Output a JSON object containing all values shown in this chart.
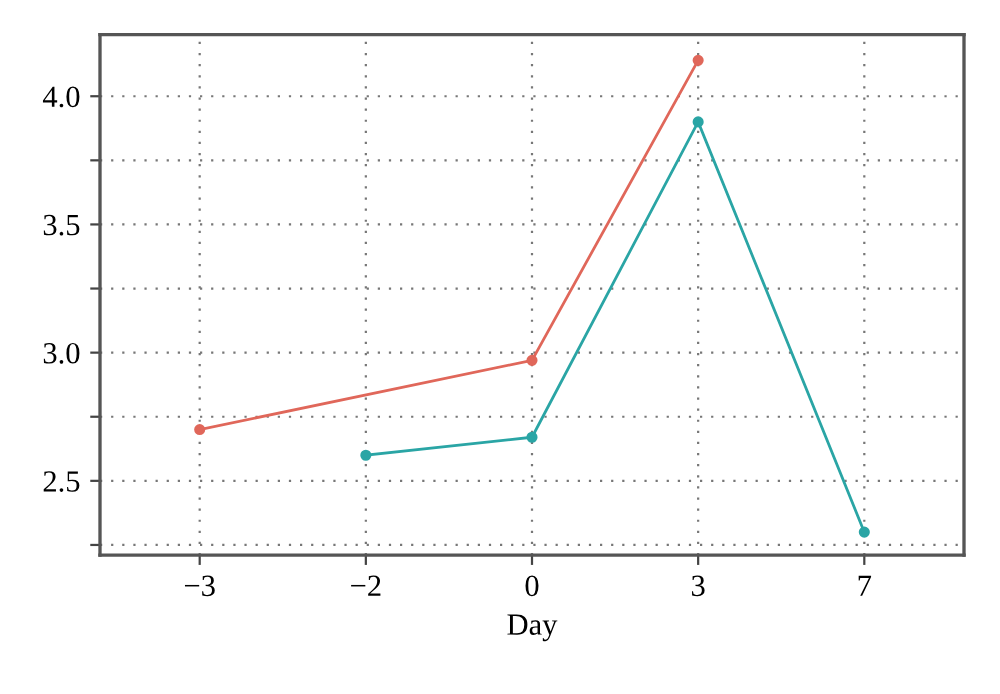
{
  "chart_data": {
    "type": "line",
    "xlabel": "Day",
    "categories": [
      "−3",
      "−2",
      "0",
      "3",
      "7"
    ],
    "series": [
      {
        "color": "#e0675a",
        "values": [
          2.7,
          null,
          2.97,
          4.14,
          null
        ]
      },
      {
        "color": "#2aa5a5",
        "values": [
          null,
          2.6,
          2.67,
          3.9,
          2.3
        ]
      }
    ],
    "ylim": [
      2.21,
      4.24
    ],
    "yticks": [
      {
        "value": 2.25,
        "label": null
      },
      2.5,
      {
        "value": 2.75,
        "label": null
      },
      {
        "value": 3.0,
        "label": "3.0"
      },
      {
        "value": 3.25,
        "label": null
      },
      3.5,
      {
        "value": 3.75,
        "label": null
      },
      {
        "value": 4.0,
        "label": "4.0"
      }
    ],
    "grid": true,
    "marker": "circle",
    "line_style": "solid"
  }
}
